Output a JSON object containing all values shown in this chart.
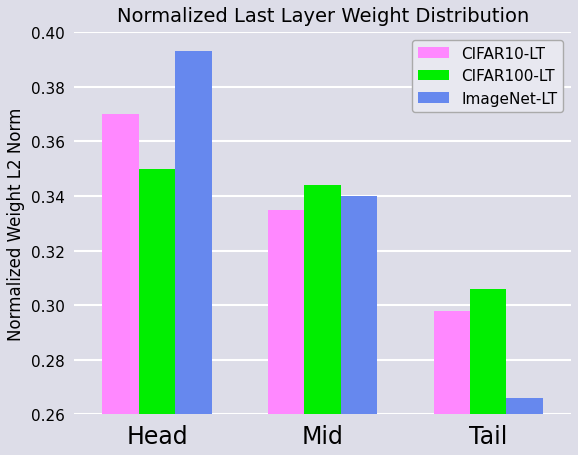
{
  "categories": [
    "Head",
    "Mid",
    "Tail"
  ],
  "series": {
    "CIFAR10-LT": [
      0.37,
      0.335,
      0.298
    ],
    "CIFAR100-LT": [
      0.35,
      0.344,
      0.306
    ],
    "ImageNet-LT": [
      0.393,
      0.34,
      0.266
    ]
  },
  "colors": {
    "CIFAR10-LT": "#FF88FF",
    "CIFAR100-LT": "#00EE00",
    "ImageNet-LT": "#6688EE"
  },
  "title": "Normalized Last Layer Weight Distribution",
  "ylabel": "Normalized Weight L2 Norm",
  "ylim": [
    0.26,
    0.4
  ],
  "yticks": [
    0.26,
    0.28,
    0.3,
    0.32,
    0.34,
    0.36,
    0.38,
    0.4
  ],
  "plot_bg_color": "#DDDDE8",
  "fig_bg_color": "#DDDDE8",
  "grid_color": "#FFFFFF",
  "title_fontsize": 14,
  "label_fontsize": 12,
  "tick_fontsize": 11,
  "legend_fontsize": 11,
  "bar_width": 0.22,
  "xtick_fontsize": 17
}
